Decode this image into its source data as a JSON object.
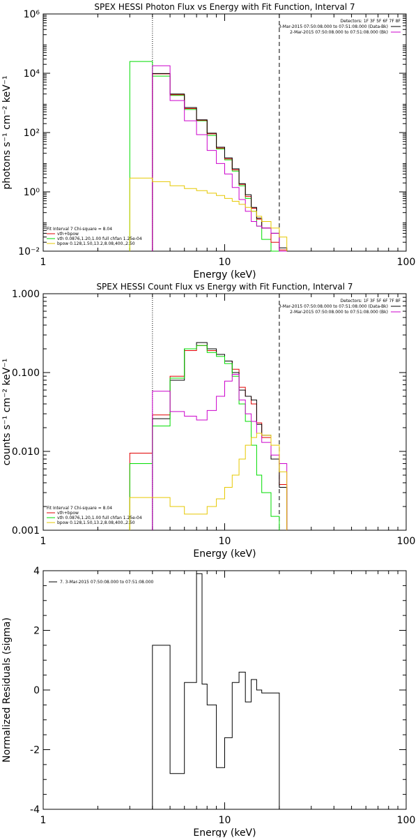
{
  "colors": {
    "data": "#000000",
    "total": "#e00000",
    "vth": "#00dd00",
    "bpow": "#e6c800",
    "bk": "#cc00cc",
    "markers": "#000000"
  },
  "chart_data": [
    {
      "id": "photon",
      "type": "line",
      "title": "SPEX HESSI Photon Flux vs Energy with Fit Function, Interval 7",
      "xlabel": "Energy (keV)",
      "ylabel": "photons s⁻¹ cm⁻² keV⁻¹",
      "xscale": "log",
      "yscale": "log",
      "xlim": [
        1,
        100
      ],
      "ylim": [
        0.01,
        1000000
      ],
      "xticks": [
        1,
        10,
        100
      ],
      "xtick_labels": [
        "1",
        "10",
        "100"
      ],
      "yticks": [
        0.01,
        1,
        100,
        10000,
        1000000
      ],
      "ytick_labels": [
        "10⁻²",
        "10⁰",
        "10²",
        "10⁴",
        "10⁶"
      ],
      "grid": false,
      "vlines": [
        {
          "x": 4.0,
          "style": "dotted"
        },
        {
          "x": 20.0,
          "style": "dashed"
        }
      ],
      "legend_top": {
        "placement": "top-right",
        "header": "Detectors: 1F 3F 5F 6F 7F 8F",
        "entries": [
          {
            "label": "3-Mar-2015 07:50:08.000 to 07:51:08.000 (Data-Bk)",
            "color_key": "data"
          },
          {
            "label": "2-Mar-2015 07:50:08.000 to 07:51:08.000 (Bk)",
            "color_key": "bk"
          }
        ]
      },
      "legend_bottom": {
        "placement": "bottom-left",
        "header": "Fit Interval 7   Chi-square = 8.04",
        "entries": [
          {
            "label": "vth+bpow",
            "color_key": "total"
          },
          {
            "label": "vth 0.0876,1.20,1.00  full chfan 1.25e-04",
            "color_key": "vth"
          },
          {
            "label": "bpow 0.128,1.50,13.2,8.08,400.,2.50",
            "color_key": "bpow"
          }
        ]
      },
      "edges": [
        3.0,
        4.0,
        5.0,
        6.0,
        7.0,
        8.0,
        9.0,
        10.0,
        11.0,
        12.0,
        13.0,
        14.0,
        15.0,
        16.0,
        18.0,
        20.0,
        22.0
      ],
      "series": [
        {
          "color_key": "vth",
          "values": [
            25000,
            8000,
            1800,
            600,
            250,
            80,
            28,
            12,
            5,
            1.6,
            0.6,
            0.22,
            0.07,
            0.025,
            0.009,
            null
          ]
        },
        {
          "color_key": "total",
          "values": [
            null,
            9500,
            1900,
            650,
            260,
            90,
            30,
            13,
            5.5,
            1.8,
            0.7,
            0.28,
            0.12,
            0.06,
            0.02,
            0.011
          ]
        },
        {
          "color_key": "data",
          "values": [
            null,
            9800,
            2000,
            700,
            270,
            95,
            32,
            14,
            6,
            1.9,
            0.8,
            0.3,
            0.13,
            0.06,
            0.04,
            0.013
          ]
        },
        {
          "color_key": "bk",
          "values": [
            null,
            18000,
            1200,
            250,
            85,
            25,
            9,
            4,
            1.4,
            0.55,
            0.22,
            0.1,
            0.07,
            0.06,
            0.04,
            0.01
          ]
        },
        {
          "color_key": "bpow",
          "values": [
            2.9,
            2.2,
            1.6,
            1.3,
            1.1,
            0.9,
            0.75,
            0.6,
            0.48,
            0.38,
            0.3,
            0.22,
            0.15,
            0.1,
            0.06,
            0.03
          ]
        }
      ]
    },
    {
      "id": "count",
      "type": "line",
      "title": "SPEX HESSI Count Flux vs Energy with Fit Function, Interval 7",
      "xlabel": "Energy (keV)",
      "ylabel": "counts s⁻¹ cm⁻² keV⁻¹",
      "xscale": "log",
      "yscale": "log",
      "xlim": [
        1,
        100
      ],
      "ylim": [
        0.001,
        1.0
      ],
      "xticks": [
        1,
        10,
        100
      ],
      "xtick_labels": [
        "1",
        "10",
        "100"
      ],
      "yticks": [
        0.001,
        0.01,
        0.1,
        1.0
      ],
      "ytick_labels": [
        "0.001",
        "0.010",
        "0.100",
        "1.000"
      ],
      "grid": false,
      "vlines": [
        {
          "x": 4.0,
          "style": "dotted"
        },
        {
          "x": 20.0,
          "style": "dashed"
        }
      ],
      "legend_top": {
        "placement": "top-right",
        "header": "Detectors: 1F 3F 5F 6F 7F 8F",
        "entries": [
          {
            "label": "3-Mar-2015 07:50:08.000 to 07:51:08.000 (Data-Bk)",
            "color_key": "data"
          },
          {
            "label": "2-Mar-2015 07:50:08.000 to 07:51:08.000 (Bk)",
            "color_key": "bk"
          }
        ]
      },
      "legend_bottom": {
        "placement": "bottom-left",
        "header": "Fit Interval 7   Chi-square = 8.04",
        "entries": [
          {
            "label": "vth+bpow",
            "color_key": "total"
          },
          {
            "label": "vth 0.0876,1.20,1.00  full chfan 1.25e-04",
            "color_key": "vth"
          },
          {
            "label": "bpow 0.128,1.50,13.2,8.08,400.,2.50",
            "color_key": "bpow"
          }
        ]
      },
      "edges": [
        3.0,
        4.0,
        5.0,
        6.0,
        7.0,
        8.0,
        9.0,
        10.0,
        11.0,
        12.0,
        13.0,
        14.0,
        15.0,
        16.0,
        18.0,
        20.0,
        22.0
      ],
      "series": [
        {
          "color_key": "total",
          "values": [
            0.0095,
            0.029,
            0.09,
            0.19,
            0.22,
            0.19,
            0.17,
            0.14,
            0.11,
            0.065,
            0.05,
            0.04,
            0.023,
            0.015,
            0.008,
            0.0038
          ]
        },
        {
          "color_key": "data",
          "values": [
            null,
            0.026,
            0.08,
            0.2,
            0.24,
            0.2,
            0.17,
            0.14,
            0.1,
            0.06,
            0.05,
            0.045,
            0.022,
            0.016,
            0.008,
            0.0035
          ]
        },
        {
          "color_key": "vth",
          "values": [
            0.007,
            0.021,
            0.085,
            0.2,
            0.22,
            0.18,
            0.16,
            0.13,
            0.09,
            0.04,
            0.024,
            0.012,
            0.005,
            0.003,
            0.0015,
            null
          ]
        },
        {
          "color_key": "bk",
          "values": [
            null,
            0.058,
            0.032,
            0.028,
            0.025,
            0.033,
            0.05,
            0.078,
            0.095,
            0.045,
            0.03,
            0.024,
            0.017,
            0.013,
            0.009,
            0.007
          ]
        },
        {
          "color_key": "bpow",
          "values": [
            0.0026,
            0.0026,
            0.002,
            0.0016,
            0.0016,
            0.002,
            0.0025,
            0.0035,
            0.005,
            0.008,
            0.012,
            0.015,
            0.017,
            0.016,
            0.012,
            0.0055
          ]
        }
      ]
    },
    {
      "id": "residuals",
      "type": "line",
      "title": "",
      "xlabel": "Energy (keV)",
      "ylabel": "Normalized Residuals (sigma)",
      "xscale": "log",
      "yscale": "linear",
      "xlim": [
        1,
        100
      ],
      "ylim": [
        -4,
        4
      ],
      "xticks": [
        1,
        10,
        100
      ],
      "xtick_labels": [
        "1",
        "10",
        "100"
      ],
      "yticks": [
        -4,
        -2,
        0,
        2,
        4
      ],
      "ytick_labels": [
        "-4",
        "-2",
        "0",
        "2",
        "4"
      ],
      "grid": false,
      "vlines": [],
      "legend_top": {
        "placement": "top-left",
        "header": "",
        "entries": [
          {
            "label": "7.  3-Mar-2015 07:50:08.000 to 07:51:08.000",
            "color_key": "data"
          }
        ]
      },
      "edges": [
        4.0,
        5.0,
        6.0,
        7.0,
        7.5,
        8.0,
        9.0,
        10.0,
        11.0,
        12.0,
        13.0,
        14.0,
        15.0,
        16.0,
        18.0,
        20.0
      ],
      "series": [
        {
          "color_key": "data",
          "values": [
            1.5,
            -2.8,
            0.25,
            3.9,
            0.2,
            -0.5,
            -2.6,
            -1.6,
            0.25,
            0.6,
            -0.4,
            0.35,
            0.0,
            -0.1,
            -0.1
          ]
        }
      ]
    }
  ]
}
